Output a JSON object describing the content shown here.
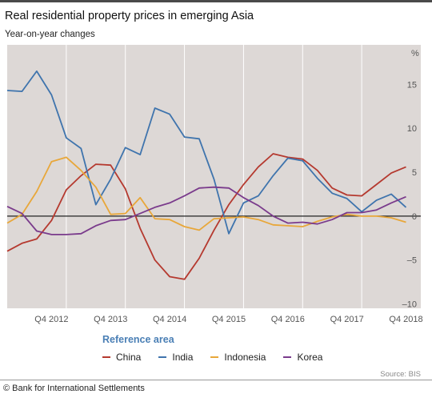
{
  "header": {
    "title": "Real residential property prices in emerging Asia",
    "subtitle": "Year-on-year changes"
  },
  "legend": {
    "title": "Reference area"
  },
  "source": "Source: BIS",
  "footer": "© Bank for International Settlements",
  "chart_data": {
    "type": "line",
    "ylabel": "%",
    "ylim": [
      -10.5,
      19.5
    ],
    "yticks": [
      15,
      10,
      5,
      0,
      -5,
      -10
    ],
    "ytick_labels": [
      "15",
      "10",
      "5",
      "0",
      "–5",
      "–10"
    ],
    "xlim": [
      "Q1 2012",
      "Q1 2019"
    ],
    "x_tick_labels": [
      "Q4 2012",
      "Q4 2013",
      "Q4 2014",
      "Q4 2015",
      "Q4 2016",
      "Q4 2017",
      "Q4 2018"
    ],
    "x": [
      "Q1 2012",
      "Q2 2012",
      "Q3 2012",
      "Q4 2012",
      "Q1 2013",
      "Q2 2013",
      "Q3 2013",
      "Q4 2013",
      "Q1 2014",
      "Q2 2014",
      "Q3 2014",
      "Q4 2014",
      "Q1 2015",
      "Q2 2015",
      "Q3 2015",
      "Q4 2015",
      "Q1 2016",
      "Q2 2016",
      "Q3 2016",
      "Q4 2016",
      "Q1 2017",
      "Q2 2017",
      "Q3 2017",
      "Q4 2017",
      "Q1 2018",
      "Q2 2018",
      "Q3 2018",
      "Q4 2018",
      "Q1 2019"
    ],
    "grid": "vertical",
    "background": "#ddd8d6",
    "series": [
      {
        "name": "China",
        "color": "#b5392f",
        "values": [
          -4.0,
          -3.1,
          -2.6,
          -0.5,
          3.0,
          4.6,
          5.9,
          5.8,
          3.1,
          -1.4,
          -5.0,
          -6.9,
          -7.2,
          -4.8,
          -1.6,
          1.3,
          3.6,
          5.6,
          7.1,
          6.7,
          6.5,
          5.2,
          3.2,
          2.4,
          2.3,
          3.6,
          4.9,
          5.6,
          null
        ]
      },
      {
        "name": "India",
        "color": "#3f74ad",
        "values": [
          14.3,
          14.2,
          16.5,
          13.8,
          8.9,
          7.7,
          1.3,
          4.2,
          7.8,
          7.0,
          12.3,
          11.6,
          9.0,
          8.8,
          4.2,
          -2.0,
          1.5,
          2.3,
          4.6,
          6.6,
          6.3,
          4.3,
          2.6,
          2.0,
          0.5,
          1.8,
          2.5,
          1.0,
          null
        ]
      },
      {
        "name": "Indonesia",
        "color": "#e8a73a",
        "values": [
          -0.8,
          0.2,
          2.8,
          6.2,
          6.7,
          5.2,
          3.3,
          0.2,
          0.3,
          2.1,
          -0.3,
          -0.4,
          -1.2,
          -1.6,
          -0.3,
          -0.2,
          -0.1,
          -0.4,
          -1.0,
          -1.1,
          -1.2,
          -0.6,
          -0.1,
          0.2,
          0.0,
          0.0,
          -0.2,
          -0.7,
          null
        ]
      },
      {
        "name": "Korea",
        "color": "#7a3b8c",
        "values": [
          1.1,
          0.3,
          -1.7,
          -2.1,
          -2.1,
          -2.0,
          -1.1,
          -0.5,
          -0.4,
          0.3,
          1.0,
          1.5,
          2.3,
          3.2,
          3.3,
          3.2,
          2.1,
          1.2,
          0.0,
          -0.8,
          -0.7,
          -0.9,
          -0.4,
          0.4,
          0.4,
          0.7,
          1.5,
          2.2,
          null
        ]
      }
    ]
  }
}
